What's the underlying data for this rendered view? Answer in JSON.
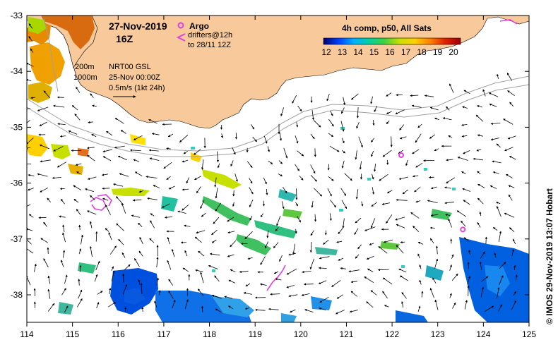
{
  "header": {
    "date": "27-Nov-2019",
    "hour": "16Z",
    "argo_label": "Argo",
    "drifter_label_1": "drifters@12h",
    "drifter_label_2": "to 28/11 12Z",
    "composite_label": "4h comp, p50, All Sats"
  },
  "contours": {
    "depth_200": "200m",
    "depth_1000": "1000m"
  },
  "current_info": {
    "source": "NRT00 GSL",
    "date": "25-Nov 00:00Z",
    "scale": "0.5m/s (1kt 24h)"
  },
  "colorbar": {
    "ticks": [
      "12",
      "13",
      "14",
      "15",
      "16",
      "17",
      "18",
      "19",
      "20"
    ],
    "stops": [
      "#00006e",
      "#0040ff",
      "#00b0ff",
      "#00d0a0",
      "#40d040",
      "#c8e000",
      "#ffd000",
      "#ff8000",
      "#e02000",
      "#a00000"
    ]
  },
  "axes": {
    "lon_ticks": [
      "114",
      "115",
      "116",
      "117",
      "118",
      "119",
      "120",
      "121",
      "122",
      "123",
      "124",
      "125"
    ],
    "lat_ticks": [
      "-33",
      "-34",
      "-35",
      "-36",
      "-37",
      "-38"
    ]
  },
  "colors": {
    "land": "#f7c99b",
    "argo": "#e040e0",
    "contour": "#a0a0a0"
  },
  "argo_floats": [
    {
      "lon": 122.2,
      "lat": -35.5
    },
    {
      "lon": 123.55,
      "lat": -36.83
    }
  ],
  "credit": "© IMOS 29-Nov-2019 13:07 Hobart"
}
